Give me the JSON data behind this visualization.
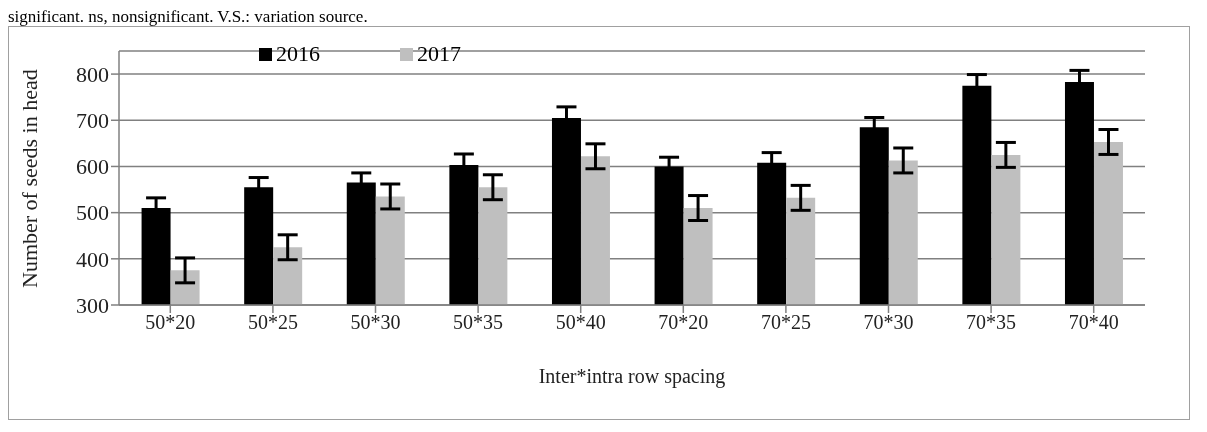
{
  "chart_data": {
    "type": "bar",
    "ylabel": "Number of seeds in head",
    "xlabel": "Inter*intra row spacing",
    "annotations": [
      "significant. ns, nonsignificant. V.S.: variation source."
    ],
    "categories": [
      "50*20",
      "50*25",
      "50*30",
      "50*35",
      "50*40",
      "70*20",
      "70*25",
      "70*30",
      "70*35",
      "70*40"
    ],
    "series": [
      {
        "name": "2016",
        "color": "#000000",
        "values": [
          510,
          555,
          565,
          603,
          705,
          600,
          608,
          685,
          775,
          783
        ],
        "errors": [
          22,
          21,
          21,
          24,
          24,
          20,
          22,
          21,
          24,
          25
        ]
      },
      {
        "name": "2017",
        "color": "#bfbfbf",
        "values": [
          375,
          425,
          535,
          555,
          622,
          510,
          532,
          613,
          625,
          653
        ],
        "errors": [
          27,
          27,
          27,
          27,
          27,
          27,
          27,
          27,
          27,
          27
        ]
      }
    ],
    "ylim": [
      300,
      850
    ],
    "yticks": [
      300,
      400,
      500,
      600,
      700,
      800
    ],
    "grid": "y",
    "legend": "top left"
  }
}
